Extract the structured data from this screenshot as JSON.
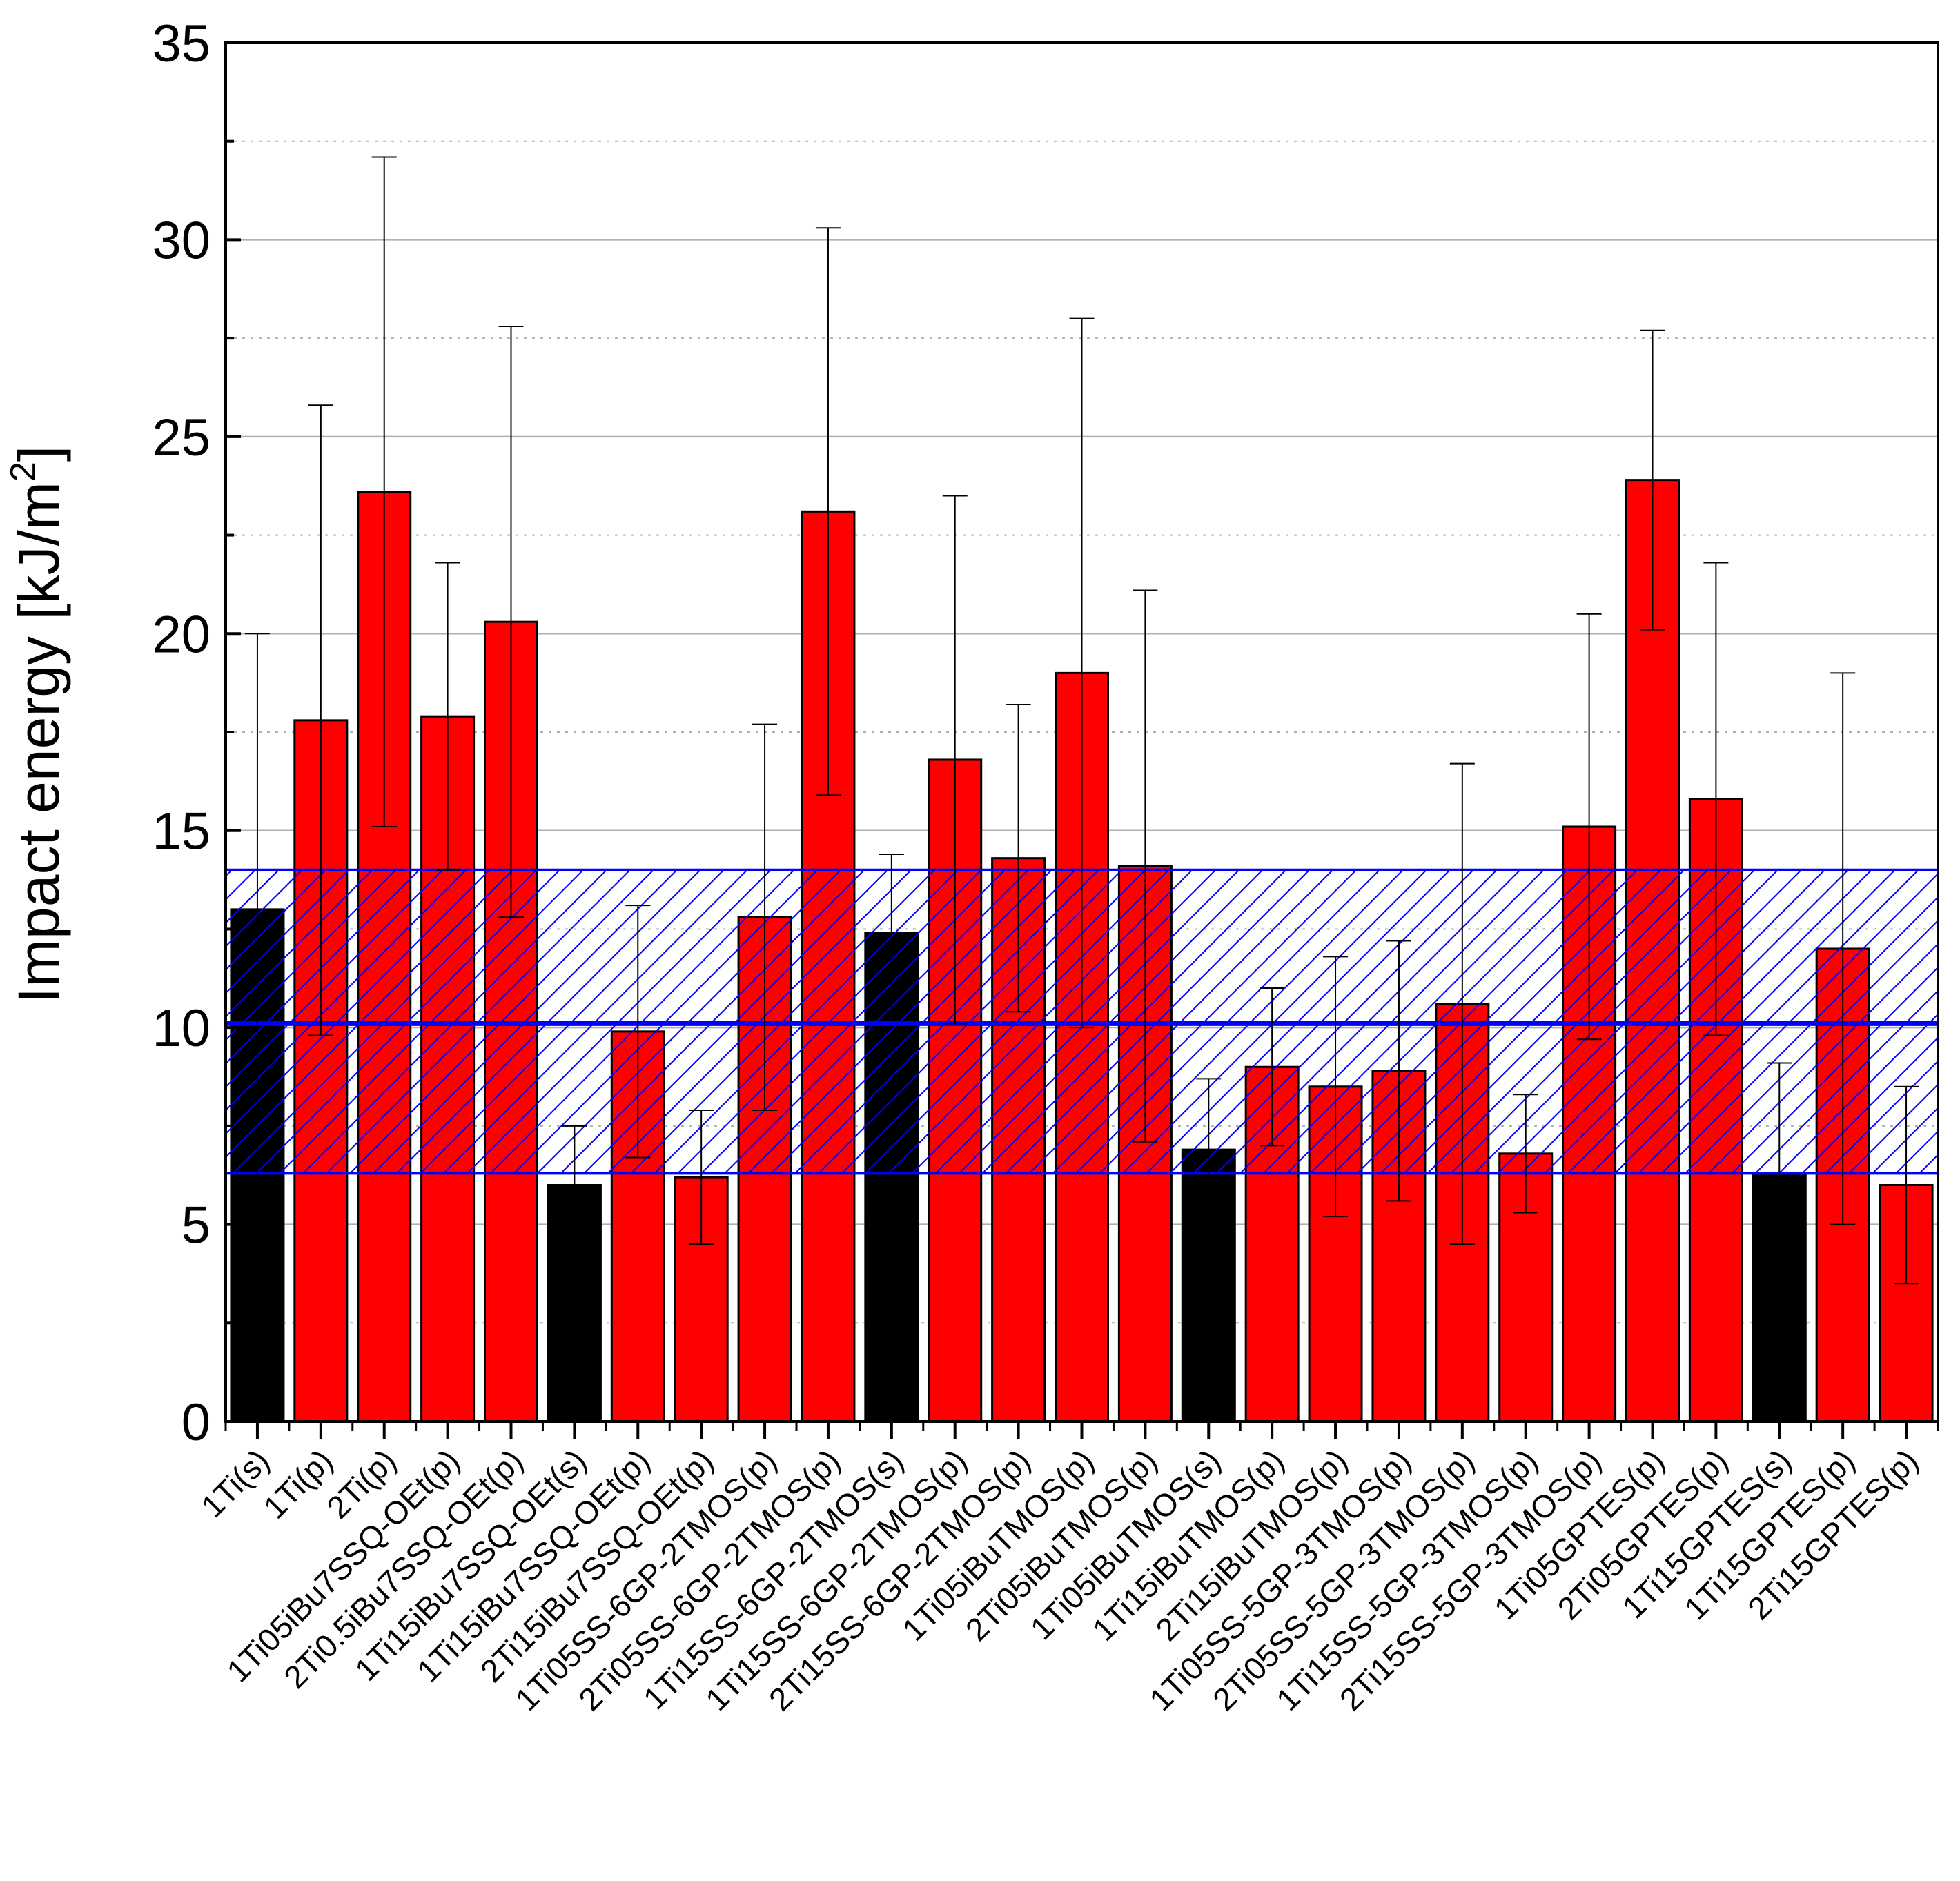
{
  "chart_data": {
    "type": "bar",
    "title": "",
    "xlabel": "",
    "ylabel": "Impact energy [kJ/m²]",
    "ylabel_main": "Impact energy [kJ/m",
    "ylabel_sup": "2",
    "ylabel_end": "]",
    "ylim": [
      0,
      35
    ],
    "yticks": [
      0,
      5,
      10,
      15,
      20,
      25,
      30,
      35
    ],
    "ytick_labels": [
      "0",
      "5",
      "10",
      "15",
      "20",
      "25",
      "30",
      "35"
    ],
    "grid": "horizontal: solid at major ticks, dotted at minor ticks",
    "categories": [
      "1Ti(s)",
      "1Ti(p)",
      "2Ti(p)",
      "1Ti05iBu7SSQ-OEt(p)",
      "2Ti0.5iBu7SSQ-OEt(p)",
      "1Ti15iBu7SSQ-OEt(s)",
      "1Ti15iBu7SSQ-OEt(p)",
      "2Ti15iBu7SSQ-OEt(p)",
      "1Ti05SS-6GP-2TMOS(p)",
      "2Ti05SS-6GP-2TMOS(p)",
      "1Ti15SS-6GP-2TMOS(s)",
      "1Ti15SS-6GP-2TMOS(p)",
      "2Ti15SS-6GP-2TMOS(p)",
      "1Ti05iBuTMOS(p)",
      "2Ti05iBuTMOS(p)",
      "1Ti05iBuTMOS(s)",
      "1Ti15iBuTMOS(p)",
      "2Ti15iBuTMOS(p)",
      "1Ti05SS-5GP-3TMOS(p)",
      "2Ti05SS-5GP-3TMOS(p)",
      "1Ti15SS-5GP-3TMOS(p)",
      "2Ti15SS-5GP-3TMOS(p)",
      "1Ti05GPTES(p)",
      "2Ti05GPTES(p)",
      "1Ti15GPTES(s)",
      "1Ti15GPTES(p)",
      "2Ti15GPTES(p)"
    ],
    "values": [
      13.0,
      17.8,
      23.6,
      17.9,
      20.3,
      6.0,
      9.9,
      6.2,
      12.8,
      23.1,
      12.4,
      16.8,
      14.3,
      19.0,
      14.1,
      6.9,
      9.0,
      8.5,
      8.9,
      10.6,
      6.8,
      15.1,
      23.9,
      15.8,
      6.3,
      12.0,
      6.0
    ],
    "errors": [
      7.0,
      8.0,
      8.5,
      3.9,
      7.5,
      1.5,
      3.2,
      1.7,
      4.9,
      7.2,
      2.0,
      6.7,
      3.9,
      9.0,
      7.0,
      1.8,
      2.0,
      3.3,
      3.3,
      6.1,
      1.5,
      5.4,
      3.8,
      6.0,
      2.8,
      7.0,
      2.5
    ],
    "kinds": [
      "s",
      "p",
      "p",
      "p",
      "p",
      "s",
      "p",
      "p",
      "p",
      "p",
      "s",
      "p",
      "p",
      "p",
      "p",
      "s",
      "p",
      "p",
      "p",
      "p",
      "p",
      "p",
      "p",
      "p",
      "s",
      "p",
      "p"
    ],
    "colors": {
      "s": "#000000",
      "p": "#ff0000",
      "band": "#0000ff",
      "grid": "#b0b0b0"
    },
    "reference_band": {
      "lower": 6.3,
      "upper": 14.0,
      "mean": 10.1
    }
  }
}
